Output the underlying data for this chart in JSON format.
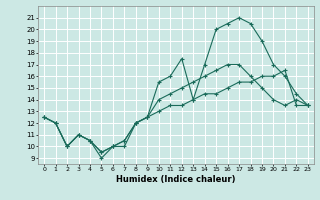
{
  "xlabel": "Humidex (Indice chaleur)",
  "bg_color": "#cce8e4",
  "grid_color": "#ffffff",
  "line_color": "#1a6b5a",
  "xlim": [
    -0.5,
    23.5
  ],
  "ylim": [
    8.5,
    22.0
  ],
  "yticks": [
    9,
    10,
    11,
    12,
    13,
    14,
    15,
    16,
    17,
    18,
    19,
    20,
    21
  ],
  "xticks": [
    0,
    1,
    2,
    3,
    4,
    5,
    6,
    7,
    8,
    9,
    10,
    11,
    12,
    13,
    14,
    15,
    16,
    17,
    18,
    19,
    20,
    21,
    22,
    23
  ],
  "line1_x": [
    0,
    1,
    2,
    3,
    4,
    5,
    6,
    7,
    8,
    9,
    10,
    11,
    12,
    13,
    14,
    15,
    16,
    17,
    18,
    19,
    20,
    21,
    22,
    23
  ],
  "line1_y": [
    12.5,
    12.0,
    10.0,
    11.0,
    10.5,
    9.0,
    10.0,
    10.0,
    12.0,
    12.5,
    15.5,
    16.0,
    17.5,
    14.0,
    17.0,
    20.0,
    20.5,
    21.0,
    20.5,
    19.0,
    17.0,
    16.0,
    14.5,
    13.5
  ],
  "line2_x": [
    0,
    1,
    2,
    3,
    4,
    5,
    6,
    7,
    8,
    9,
    10,
    11,
    12,
    13,
    14,
    15,
    16,
    17,
    18,
    19,
    20,
    21,
    22,
    23
  ],
  "line2_y": [
    12.5,
    12.0,
    10.0,
    11.0,
    10.5,
    9.5,
    10.0,
    10.5,
    12.0,
    12.5,
    14.0,
    14.5,
    15.0,
    15.5,
    16.0,
    16.5,
    17.0,
    17.0,
    16.0,
    15.0,
    14.0,
    13.5,
    14.0,
    13.5
  ],
  "line3_x": [
    0,
    1,
    2,
    3,
    4,
    5,
    6,
    7,
    8,
    9,
    10,
    11,
    12,
    13,
    14,
    15,
    16,
    17,
    18,
    19,
    20,
    21,
    22,
    23
  ],
  "line3_y": [
    12.5,
    12.0,
    10.0,
    11.0,
    10.5,
    9.5,
    10.0,
    10.5,
    12.0,
    12.5,
    13.0,
    13.5,
    13.5,
    14.0,
    14.5,
    14.5,
    15.0,
    15.5,
    15.5,
    16.0,
    16.0,
    16.5,
    13.5,
    13.5
  ]
}
